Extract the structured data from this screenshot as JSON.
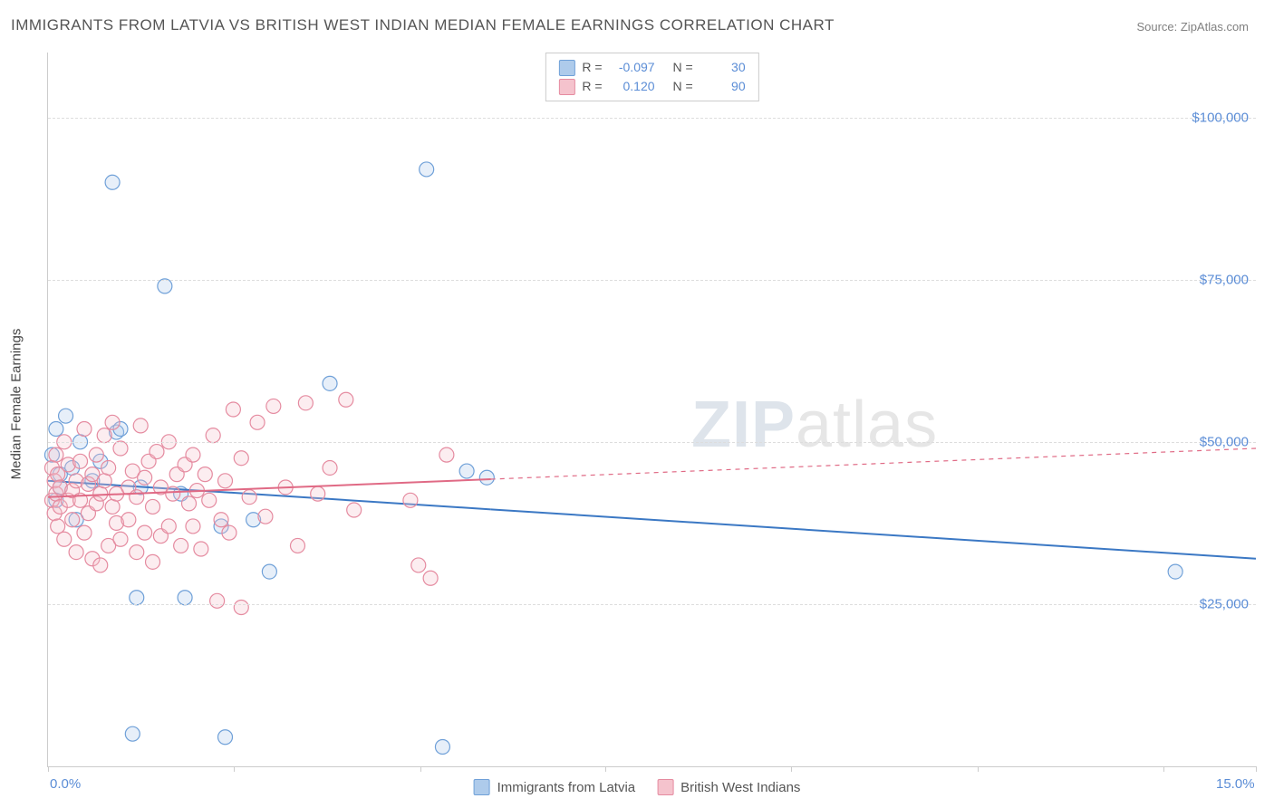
{
  "title": "IMMIGRANTS FROM LATVIA VS BRITISH WEST INDIAN MEDIAN FEMALE EARNINGS CORRELATION CHART",
  "source": "Source: ZipAtlas.com",
  "ylabel": "Median Female Earnings",
  "watermark_bold": "ZIP",
  "watermark_light": "atlas",
  "chart": {
    "type": "scatter",
    "xlim": [
      0.0,
      15.0
    ],
    "ylim": [
      0,
      110000
    ],
    "xticks": [
      0.0,
      2.31,
      4.62,
      6.92,
      9.23,
      11.54,
      13.85,
      15.0
    ],
    "xtick_labels": {
      "0.0": "0.0%",
      "15.0": "15.0%"
    },
    "yticks": [
      25000,
      50000,
      75000,
      100000
    ],
    "ytick_labels": [
      "$25,000",
      "$50,000",
      "$75,000",
      "$100,000"
    ],
    "grid_color": "#dddddd",
    "background_color": "#ffffff",
    "axis_color": "#cccccc",
    "tick_label_color": "#5b8dd6",
    "ylabel_color": "#444444",
    "ylabel_fontsize": 15,
    "title_fontsize": 17,
    "title_color": "#555555",
    "marker_radius": 8,
    "marker_fill_opacity": 0.3,
    "marker_stroke_width": 1.2,
    "trend_line_width": 2,
    "trend_dash": "5,5"
  },
  "series": [
    {
      "id": "latvia",
      "label": "Immigrants from Latvia",
      "color_fill": "#aecbeb",
      "color_stroke": "#6fa0d8",
      "line_color": "#3b78c4",
      "R": "-0.097",
      "N": "30",
      "trend": {
        "y_at_x0": 44000,
        "y_at_xmax": 32000,
        "data_x_extent": 5.5
      },
      "points": [
        [
          0.05,
          48000
        ],
        [
          0.1,
          52000
        ],
        [
          0.1,
          41000
        ],
        [
          0.15,
          45000
        ],
        [
          0.15,
          43000
        ],
        [
          0.22,
          54000
        ],
        [
          0.35,
          38000
        ],
        [
          0.4,
          50000
        ],
        [
          0.55,
          44000
        ],
        [
          0.65,
          47000
        ],
        [
          0.8,
          90000
        ],
        [
          0.85,
          51500
        ],
        [
          0.9,
          52000
        ],
        [
          1.05,
          5000
        ],
        [
          1.1,
          26000
        ],
        [
          1.15,
          43000
        ],
        [
          1.45,
          74000
        ],
        [
          1.65,
          42000
        ],
        [
          1.7,
          26000
        ],
        [
          2.15,
          37000
        ],
        [
          2.2,
          4500
        ],
        [
          2.55,
          38000
        ],
        [
          2.75,
          30000
        ],
        [
          3.5,
          59000
        ],
        [
          4.7,
          92000
        ],
        [
          4.9,
          3000
        ],
        [
          5.2,
          45500
        ],
        [
          5.45,
          44500
        ],
        [
          14.0,
          30000
        ],
        [
          0.3,
          46000
        ]
      ]
    },
    {
      "id": "bwi",
      "label": "British West Indians",
      "color_fill": "#f5c3cd",
      "color_stroke": "#e58ba0",
      "line_color": "#e06a85",
      "R": "0.120",
      "N": "90",
      "trend": {
        "y_at_x0": 41500,
        "y_at_xmax": 49000,
        "data_x_extent": 5.5
      },
      "points": [
        [
          0.05,
          41000
        ],
        [
          0.05,
          46000
        ],
        [
          0.08,
          39000
        ],
        [
          0.08,
          44000
        ],
        [
          0.1,
          42000
        ],
        [
          0.1,
          48000
        ],
        [
          0.12,
          37000
        ],
        [
          0.12,
          45000
        ],
        [
          0.15,
          40000
        ],
        [
          0.15,
          43000
        ],
        [
          0.2,
          35000
        ],
        [
          0.2,
          50000
        ],
        [
          0.25,
          41000
        ],
        [
          0.25,
          46500
        ],
        [
          0.3,
          38000
        ],
        [
          0.3,
          42500
        ],
        [
          0.35,
          33000
        ],
        [
          0.35,
          44000
        ],
        [
          0.4,
          47000
        ],
        [
          0.4,
          41000
        ],
        [
          0.45,
          36000
        ],
        [
          0.45,
          52000
        ],
        [
          0.5,
          39000
        ],
        [
          0.5,
          43500
        ],
        [
          0.55,
          45000
        ],
        [
          0.55,
          32000
        ],
        [
          0.6,
          40500
        ],
        [
          0.6,
          48000
        ],
        [
          0.65,
          31000
        ],
        [
          0.65,
          42000
        ],
        [
          0.7,
          51000
        ],
        [
          0.7,
          44000
        ],
        [
          0.75,
          34000
        ],
        [
          0.75,
          46000
        ],
        [
          0.8,
          40000
        ],
        [
          0.8,
          53000
        ],
        [
          0.85,
          37500
        ],
        [
          0.85,
          42000
        ],
        [
          0.9,
          49000
        ],
        [
          0.9,
          35000
        ],
        [
          1.0,
          43000
        ],
        [
          1.0,
          38000
        ],
        [
          1.05,
          45500
        ],
        [
          1.1,
          33000
        ],
        [
          1.1,
          41500
        ],
        [
          1.15,
          52500
        ],
        [
          1.2,
          36000
        ],
        [
          1.2,
          44500
        ],
        [
          1.25,
          47000
        ],
        [
          1.3,
          31500
        ],
        [
          1.3,
          40000
        ],
        [
          1.35,
          48500
        ],
        [
          1.4,
          35500
        ],
        [
          1.4,
          43000
        ],
        [
          1.5,
          50000
        ],
        [
          1.5,
          37000
        ],
        [
          1.55,
          42000
        ],
        [
          1.6,
          45000
        ],
        [
          1.65,
          34000
        ],
        [
          1.7,
          46500
        ],
        [
          1.75,
          40500
        ],
        [
          1.8,
          37000
        ],
        [
          1.8,
          48000
        ],
        [
          1.85,
          42500
        ],
        [
          1.9,
          33500
        ],
        [
          1.95,
          45000
        ],
        [
          2.0,
          41000
        ],
        [
          2.05,
          51000
        ],
        [
          2.1,
          25500
        ],
        [
          2.15,
          38000
        ],
        [
          2.2,
          44000
        ],
        [
          2.25,
          36000
        ],
        [
          2.3,
          55000
        ],
        [
          2.4,
          47500
        ],
        [
          2.4,
          24500
        ],
        [
          2.5,
          41500
        ],
        [
          2.6,
          53000
        ],
        [
          2.7,
          38500
        ],
        [
          2.8,
          55500
        ],
        [
          2.95,
          43000
        ],
        [
          3.1,
          34000
        ],
        [
          3.2,
          56000
        ],
        [
          3.35,
          42000
        ],
        [
          3.5,
          46000
        ],
        [
          3.7,
          56500
        ],
        [
          3.8,
          39500
        ],
        [
          4.5,
          41000
        ],
        [
          4.6,
          31000
        ],
        [
          4.95,
          48000
        ],
        [
          4.75,
          29000
        ]
      ]
    }
  ],
  "stats_box": {
    "border_color": "#cccccc",
    "r_label": "R =",
    "n_label": "N ="
  },
  "bottom_legend": {
    "items": [
      "Immigrants from Latvia",
      "British West Indians"
    ]
  }
}
